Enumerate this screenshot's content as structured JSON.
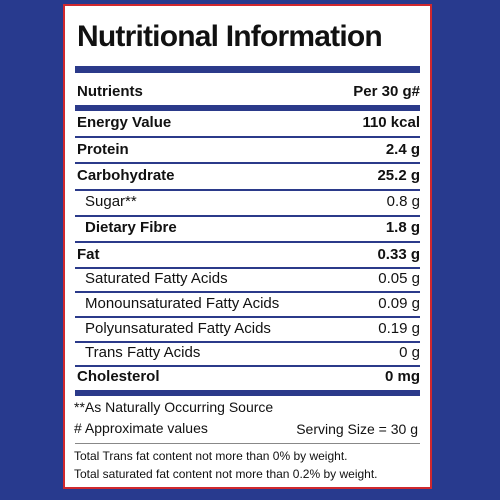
{
  "title": "Nutritional Information",
  "header": {
    "nutrients_label": "Nutrients",
    "per_label": "Per 30 g#"
  },
  "rows": [
    {
      "name": "Energy Value",
      "value": "110 kcal"
    },
    {
      "name": "Protein",
      "value": "2.4 g"
    },
    {
      "name": "Carbohydrate",
      "value": "25.2 g"
    },
    {
      "name": "Sugar**",
      "value": "0.8 g"
    },
    {
      "name": "Dietary Fibre",
      "value": "1.8 g"
    },
    {
      "name": "Fat",
      "value": "0.33 g"
    },
    {
      "name": "Saturated Fatty Acids",
      "value": "0.05 g"
    },
    {
      "name": "Monounsaturated Fatty Acids",
      "value": "0.09 g"
    },
    {
      "name": "Polyunsaturated Fatty Acids",
      "value": "0.19 g"
    },
    {
      "name": "Trans Fatty Acids",
      "value": "0 g"
    },
    {
      "name": "Cholesterol",
      "value": "0 mg"
    }
  ],
  "notes": {
    "source": "**As Naturally Occurring Source",
    "approx": "# Approximate values",
    "serving_size": "Serving Size = 30 g"
  },
  "footer": {
    "trans_fat": "Total Trans fat content not more than 0% by weight.",
    "saturated_fat": "Total saturated fat content not more than 0.2% by weight."
  },
  "colors": {
    "background": "#283a8e",
    "border": "#d0282e",
    "rule": "#2b3a8a"
  }
}
